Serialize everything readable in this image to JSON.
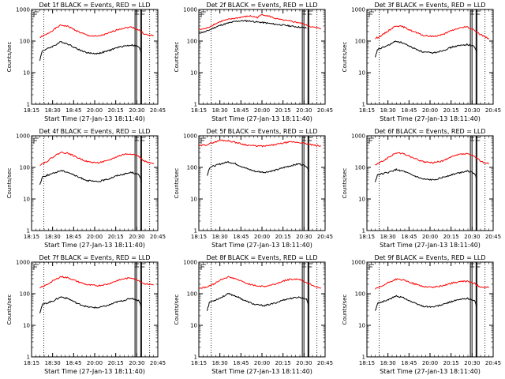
{
  "window": {
    "background": "#ffffff"
  },
  "colors": {
    "events": "#000000",
    "lld": "#ff0000",
    "axis": "#000000"
  },
  "layout_grid": {
    "rows": 3,
    "cols": 3
  },
  "chart_data": [
    {
      "type": "line",
      "title": "Det 1f BLACK = Events, RED = LLD",
      "xlabel": "Start Time (27-Jan-13 18:11:40)",
      "ylabel": "Counts/sec",
      "yscale": "log",
      "ylim": [
        1,
        1000
      ],
      "xlim": [
        18.25,
        20.8333
      ],
      "x_tick_labels": [
        "18:15",
        "18:30",
        "18:45",
        "20:00",
        "20:15",
        "20:30",
        "20:45"
      ],
      "y_tick_labels": [
        "1",
        "10",
        "100",
        "1000"
      ],
      "y_tick_values": [
        1,
        10,
        100,
        1000
      ],
      "dotted_vlines": [
        18.5,
        20.6667
      ],
      "solid_vlines": [
        20.3667,
        20.4,
        20.4833,
        20.5
      ],
      "series": [
        {
          "color": "#ff0000",
          "x": [
            18.42,
            18.55,
            18.7,
            18.85,
            19.0,
            19.2,
            19.4,
            19.6,
            19.8,
            20.0,
            20.15,
            20.3,
            20.45,
            20.55,
            20.65,
            20.75
          ],
          "y": [
            130,
            160,
            230,
            320,
            290,
            200,
            150,
            140,
            170,
            230,
            260,
            280,
            220,
            170,
            150,
            150
          ]
        },
        {
          "color": "#000000",
          "x": [
            18.42,
            18.47,
            18.55,
            18.7,
            18.85,
            19.0,
            19.2,
            19.4,
            19.6,
            19.8,
            20.0,
            20.15,
            20.3,
            20.45,
            20.5
          ],
          "y": [
            25,
            50,
            55,
            70,
            95,
            80,
            55,
            42,
            40,
            48,
            62,
            70,
            75,
            65,
            40
          ]
        }
      ]
    },
    {
      "type": "line",
      "title": "Det 2f BLACK = Events, RED = LLD",
      "xlabel": "Start Time (27-Jan-13 18:11:40)",
      "ylabel": "Counts/sec",
      "yscale": "log",
      "ylim": [
        1,
        1000
      ],
      "xlim": [
        18.25,
        20.8333
      ],
      "x_tick_labels": [
        "18:15",
        "18:30",
        "18:45",
        "20:00",
        "20:15",
        "20:30",
        "20:45"
      ],
      "y_tick_labels": [
        "1",
        "10",
        "100",
        "1000"
      ],
      "y_tick_values": [
        1,
        10,
        100,
        1000
      ],
      "dotted_vlines": [
        18.5,
        20.6667
      ],
      "solid_vlines": [
        20.3667,
        20.4,
        20.4833,
        20.5
      ],
      "series": [
        {
          "color": "#ff0000",
          "x": [
            18.25,
            18.4,
            18.55,
            18.7,
            18.85,
            19.0,
            19.15,
            19.3,
            19.45,
            19.55,
            19.7,
            19.85,
            20.0,
            20.15,
            20.3,
            20.45,
            20.6,
            20.75
          ],
          "y": [
            230,
            250,
            330,
            420,
            480,
            530,
            580,
            620,
            560,
            700,
            600,
            500,
            450,
            420,
            380,
            320,
            270,
            250
          ]
        },
        {
          "color": "#000000",
          "x": [
            18.25,
            18.4,
            18.55,
            18.7,
            18.85,
            19.0,
            19.15,
            19.3,
            19.45,
            19.6,
            19.75,
            19.9,
            20.05,
            20.2,
            20.35,
            20.45
          ],
          "y": [
            180,
            200,
            260,
            320,
            370,
            420,
            440,
            430,
            400,
            380,
            350,
            330,
            310,
            290,
            270,
            260
          ]
        }
      ]
    },
    {
      "type": "line",
      "title": "Det 3f BLACK = Events, RED = LLD",
      "xlabel": "Start Time (27-Jan-13 18:11:40)",
      "ylabel": "Counts/sec",
      "yscale": "log",
      "ylim": [
        1,
        1000
      ],
      "xlim": [
        18.25,
        20.8333
      ],
      "x_tick_labels": [
        "18:15",
        "18:30",
        "18:45",
        "20:00",
        "20:15",
        "20:30",
        "20:45"
      ],
      "y_tick_labels": [
        "1",
        "10",
        "100",
        "1000"
      ],
      "y_tick_values": [
        1,
        10,
        100,
        1000
      ],
      "dotted_vlines": [
        18.5,
        20.6667
      ],
      "solid_vlines": [
        20.3667,
        20.4,
        20.4833,
        20.5
      ],
      "series": [
        {
          "color": "#ff0000",
          "x": [
            18.42,
            18.55,
            18.7,
            18.85,
            19.0,
            19.2,
            19.4,
            19.6,
            19.8,
            20.0,
            20.15,
            20.3,
            20.45,
            20.55,
            20.65,
            20.75
          ],
          "y": [
            120,
            150,
            220,
            310,
            280,
            200,
            150,
            140,
            160,
            220,
            260,
            280,
            220,
            170,
            140,
            120
          ]
        },
        {
          "color": "#000000",
          "x": [
            18.42,
            18.47,
            18.55,
            18.7,
            18.85,
            19.0,
            19.2,
            19.4,
            19.6,
            19.8,
            20.0,
            20.15,
            20.3,
            20.45,
            20.5
          ],
          "y": [
            30,
            55,
            60,
            75,
            100,
            85,
            60,
            45,
            42,
            50,
            65,
            72,
            78,
            68,
            45
          ]
        }
      ]
    },
    {
      "type": "line",
      "title": "Det 4f BLACK = Events, RED = LLD",
      "xlabel": "Start Time (27-Jan-13 18:11:40)",
      "ylabel": "Counts/sec",
      "yscale": "log",
      "ylim": [
        1,
        1000
      ],
      "xlim": [
        18.25,
        20.8333
      ],
      "x_tick_labels": [
        "18:15",
        "18:30",
        "18:45",
        "20:00",
        "20:15",
        "20:30",
        "20:45"
      ],
      "y_tick_labels": [
        "1",
        "10",
        "100",
        "1000"
      ],
      "y_tick_values": [
        1,
        10,
        100,
        1000
      ],
      "dotted_vlines": [
        18.5,
        20.6667
      ],
      "solid_vlines": [
        20.3667,
        20.4,
        20.4833,
        20.5
      ],
      "series": [
        {
          "color": "#ff0000",
          "x": [
            18.42,
            18.55,
            18.7,
            18.85,
            19.0,
            19.2,
            19.4,
            19.6,
            19.8,
            20.0,
            20.15,
            20.3,
            20.45,
            20.55,
            20.65,
            20.75
          ],
          "y": [
            120,
            150,
            220,
            300,
            280,
            200,
            150,
            140,
            160,
            220,
            260,
            270,
            220,
            160,
            140,
            130
          ]
        },
        {
          "color": "#000000",
          "x": [
            18.42,
            18.47,
            18.55,
            18.7,
            18.85,
            19.0,
            19.2,
            19.4,
            19.6,
            19.8,
            20.0,
            20.15,
            20.3,
            20.45,
            20.5
          ],
          "y": [
            28,
            50,
            55,
            65,
            80,
            70,
            50,
            38,
            35,
            42,
            55,
            62,
            70,
            58,
            35
          ]
        }
      ]
    },
    {
      "type": "line",
      "title": "Det 5f BLACK = Events, RED = LLD",
      "xlabel": "Start Time (27-Jan-13 18:11:40)",
      "ylabel": "Counts/sec",
      "yscale": "log",
      "ylim": [
        1,
        1000
      ],
      "xlim": [
        18.25,
        20.8333
      ],
      "x_tick_labels": [
        "18:15",
        "18:30",
        "18:45",
        "20:00",
        "20:15",
        "20:30",
        "20:45"
      ],
      "y_tick_labels": [
        "1",
        "10",
        "100",
        "1000"
      ],
      "y_tick_values": [
        1,
        10,
        100,
        1000
      ],
      "dotted_vlines": [
        18.5,
        20.6667
      ],
      "solid_vlines": [
        20.3667,
        20.4,
        20.4833,
        20.5
      ],
      "series": [
        {
          "color": "#ff0000",
          "x": [
            18.25,
            18.4,
            18.55,
            18.7,
            18.85,
            19.0,
            19.2,
            19.4,
            19.6,
            19.8,
            20.0,
            20.15,
            20.3,
            20.45,
            20.6,
            20.75
          ],
          "y": [
            480,
            520,
            620,
            720,
            700,
            620,
            520,
            480,
            470,
            520,
            600,
            640,
            620,
            560,
            500,
            470
          ]
        },
        {
          "color": "#000000",
          "x": [
            18.42,
            18.47,
            18.55,
            18.7,
            18.85,
            19.0,
            19.2,
            19.4,
            19.6,
            19.8,
            20.0,
            20.15,
            20.3,
            20.45,
            20.5
          ],
          "y": [
            55,
            100,
            110,
            130,
            150,
            130,
            95,
            75,
            70,
            80,
            100,
            115,
            130,
            110,
            80
          ]
        }
      ]
    },
    {
      "type": "line",
      "title": "Det 6f BLACK = Events, RED = LLD",
      "xlabel": "Start Time (27-Jan-13 18:11:40)",
      "ylabel": "Counts/sec",
      "yscale": "log",
      "ylim": [
        1,
        1000
      ],
      "xlim": [
        18.25,
        20.8333
      ],
      "x_tick_labels": [
        "18:15",
        "18:30",
        "18:45",
        "20:00",
        "20:15",
        "20:30",
        "20:45"
      ],
      "y_tick_labels": [
        "1",
        "10",
        "100",
        "1000"
      ],
      "y_tick_values": [
        1,
        10,
        100,
        1000
      ],
      "dotted_vlines": [
        18.5,
        20.6667
      ],
      "solid_vlines": [
        20.3667,
        20.4,
        20.4833,
        20.5
      ],
      "series": [
        {
          "color": "#ff0000",
          "x": [
            18.42,
            18.55,
            18.7,
            18.85,
            19.0,
            19.2,
            19.4,
            19.6,
            19.8,
            20.0,
            20.15,
            20.3,
            20.45,
            20.55,
            20.65,
            20.75
          ],
          "y": [
            120,
            150,
            210,
            290,
            270,
            200,
            150,
            140,
            160,
            220,
            260,
            270,
            220,
            170,
            140,
            130
          ]
        },
        {
          "color": "#000000",
          "x": [
            18.42,
            18.47,
            18.55,
            18.7,
            18.85,
            19.0,
            19.2,
            19.4,
            19.6,
            19.8,
            20.0,
            20.15,
            20.3,
            20.45,
            20.5
          ],
          "y": [
            35,
            60,
            62,
            70,
            85,
            75,
            55,
            42,
            40,
            48,
            60,
            68,
            78,
            65,
            45
          ]
        }
      ]
    },
    {
      "type": "line",
      "title": "Det 7f BLACK = Events, RED = LLD",
      "xlabel": "Start Time (27-Jan-13 18:11:40)",
      "ylabel": "Counts/sec",
      "yscale": "log",
      "ylim": [
        1,
        1000
      ],
      "xlim": [
        18.25,
        20.8333
      ],
      "x_tick_labels": [
        "18:15",
        "18:30",
        "18:45",
        "20:00",
        "20:15",
        "20:30",
        "20:45"
      ],
      "y_tick_labels": [
        "1",
        "10",
        "100",
        "1000"
      ],
      "y_tick_values": [
        1,
        10,
        100,
        1000
      ],
      "dotted_vlines": [
        18.5,
        20.6667
      ],
      "solid_vlines": [
        20.3667,
        20.4,
        20.4833,
        20.5
      ],
      "series": [
        {
          "color": "#ff0000",
          "x": [
            18.42,
            18.55,
            18.7,
            18.85,
            19.0,
            19.2,
            19.4,
            19.6,
            19.8,
            20.0,
            20.15,
            20.3,
            20.45,
            20.55,
            20.65,
            20.75
          ],
          "y": [
            150,
            190,
            260,
            350,
            320,
            240,
            190,
            180,
            200,
            260,
            300,
            320,
            260,
            210,
            200,
            190
          ]
        },
        {
          "color": "#000000",
          "x": [
            18.42,
            18.47,
            18.55,
            18.7,
            18.85,
            19.0,
            19.2,
            19.4,
            19.6,
            19.8,
            20.0,
            20.15,
            20.3,
            20.45,
            20.5
          ],
          "y": [
            25,
            45,
            50,
            60,
            80,
            70,
            48,
            38,
            36,
            42,
            55,
            62,
            72,
            60,
            38
          ]
        }
      ]
    },
    {
      "type": "line",
      "title": "Det 8f BLACK = Events, RED = LLD",
      "xlabel": "Start Time (27-Jan-13 18:11:40)",
      "ylabel": "Counts/sec",
      "yscale": "log",
      "ylim": [
        1,
        1000
      ],
      "xlim": [
        18.25,
        20.8333
      ],
      "x_tick_labels": [
        "18:15",
        "18:30",
        "18:45",
        "20:00",
        "20:15",
        "20:30",
        "20:45"
      ],
      "y_tick_labels": [
        "1",
        "10",
        "100",
        "1000"
      ],
      "y_tick_values": [
        1,
        10,
        100,
        1000
      ],
      "dotted_vlines": [
        18.5,
        20.6667
      ],
      "solid_vlines": [
        20.3667,
        20.4,
        20.4833,
        20.5
      ],
      "series": [
        {
          "color": "#ff0000",
          "x": [
            18.25,
            18.4,
            18.55,
            18.7,
            18.85,
            19.0,
            19.2,
            19.4,
            19.6,
            19.8,
            20.0,
            20.15,
            20.3,
            20.45,
            20.6,
            20.75
          ],
          "y": [
            150,
            160,
            200,
            280,
            340,
            300,
            220,
            180,
            170,
            200,
            260,
            290,
            290,
            230,
            180,
            150
          ]
        },
        {
          "color": "#000000",
          "x": [
            18.42,
            18.47,
            18.55,
            18.7,
            18.85,
            19.0,
            19.2,
            19.4,
            19.6,
            19.8,
            20.0,
            20.15,
            20.3,
            20.45,
            20.5
          ],
          "y": [
            30,
            55,
            60,
            75,
            100,
            85,
            60,
            45,
            42,
            50,
            65,
            72,
            78,
            68,
            45
          ]
        }
      ]
    },
    {
      "type": "line",
      "title": "Det 9f BLACK = Events, RED = LLD",
      "xlabel": "Start Time (27-Jan-13 18:11:40)",
      "ylabel": "Counts/sec",
      "yscale": "log",
      "ylim": [
        1,
        1000
      ],
      "xlim": [
        18.25,
        20.8333
      ],
      "x_tick_labels": [
        "18:15",
        "18:30",
        "18:45",
        "20:00",
        "20:15",
        "20:30",
        "20:45"
      ],
      "y_tick_labels": [
        "1",
        "10",
        "100",
        "1000"
      ],
      "y_tick_values": [
        1,
        10,
        100,
        1000
      ],
      "dotted_vlines": [
        18.5,
        20.6667
      ],
      "solid_vlines": [
        20.3667,
        20.4,
        20.4833,
        20.5
      ],
      "series": [
        {
          "color": "#ff0000",
          "x": [
            18.42,
            18.55,
            18.7,
            18.85,
            19.0,
            19.2,
            19.4,
            19.6,
            19.8,
            20.0,
            20.15,
            20.3,
            20.45,
            20.55,
            20.65,
            20.75
          ],
          "y": [
            140,
            170,
            230,
            290,
            270,
            210,
            170,
            160,
            180,
            220,
            240,
            250,
            210,
            170,
            160,
            160
          ]
        },
        {
          "color": "#000000",
          "x": [
            18.42,
            18.47,
            18.55,
            18.7,
            18.85,
            19.0,
            19.2,
            19.4,
            19.6,
            19.8,
            20.0,
            20.15,
            20.3,
            20.45,
            20.5
          ],
          "y": [
            28,
            50,
            55,
            65,
            85,
            75,
            52,
            40,
            38,
            45,
            58,
            65,
            72,
            60,
            40
          ]
        }
      ]
    }
  ]
}
